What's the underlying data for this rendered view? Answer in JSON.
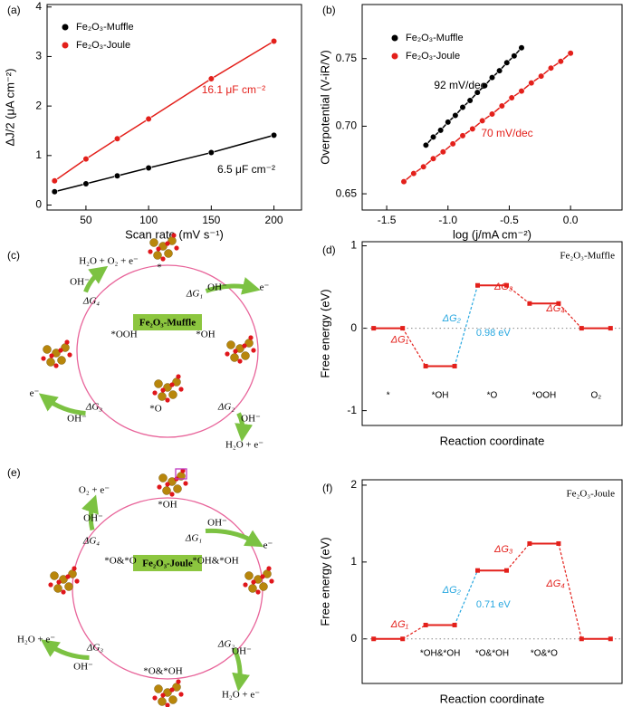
{
  "chart_data": [
    {
      "type": "line",
      "panel": "(a)",
      "xlabel": "Scan rate (mV s⁻¹)",
      "ylabel": "ΔJ/2 (μA cm⁻²)",
      "x": [
        25,
        50,
        75,
        100,
        150,
        200
      ],
      "xlim": [
        19,
        222
      ],
      "xticks": [
        50,
        100,
        150,
        200
      ],
      "ylim": [
        -0.1,
        4.05
      ],
      "yticks": [
        0,
        1,
        2,
        3,
        4
      ],
      "legend": "upper left",
      "series": [
        {
          "name": "Fe₂O₃-Muffle",
          "color": "#000000",
          "values": [
            0.27,
            0.43,
            0.59,
            0.75,
            1.06,
            1.41
          ],
          "annotation": "6.5 μF cm⁻²"
        },
        {
          "name": "Fe₂O₃-Joule",
          "color": "#e3201b",
          "values": [
            0.49,
            0.93,
            1.34,
            1.74,
            2.55,
            3.31
          ],
          "annotation": "16.1 μF cm⁻²"
        }
      ]
    },
    {
      "type": "line",
      "panel": "(b)",
      "xlabel": "log (j/mA cm⁻²)",
      "ylabel": "Overpotential (V-iR/V)",
      "xlim": [
        -1.7,
        0.42
      ],
      "xticks": [
        -1.5,
        {
          "value": -1,
          "label": "-1.0"
        },
        -0.5,
        {
          "value": 0,
          "label": "0.0"
        }
      ],
      "ylim": [
        0.638,
        0.79
      ],
      "yticks": [
        0.65,
        {
          "value": 0.7,
          "label": "0.70"
        },
        0.75
      ],
      "legend": "upper left",
      "series": [
        {
          "name": "Fe₂O₃-Muffle",
          "color": "#000000",
          "x": [
            -1.18,
            -1.12,
            -1.06,
            -1.0,
            -0.94,
            -0.88,
            -0.82,
            -0.76,
            -0.7,
            -0.64,
            -0.58,
            -0.52,
            -0.46,
            -0.4
          ],
          "values": [
            0.686,
            0.692,
            0.697,
            0.703,
            0.708,
            0.714,
            0.719,
            0.725,
            0.73,
            0.736,
            0.741,
            0.747,
            0.752,
            0.758
          ],
          "annotation": "92 mV/dec"
        },
        {
          "name": "Fe₂O₃-Joule",
          "color": "#e3201b",
          "x": [
            -1.36,
            -1.28,
            -1.2,
            -1.12,
            -1.04,
            -0.96,
            -0.88,
            -0.8,
            -0.72,
            -0.64,
            -0.56,
            -0.48,
            -0.4,
            -0.32,
            -0.24,
            -0.16,
            -0.08,
            0.0
          ],
          "values": [
            0.659,
            0.665,
            0.67,
            0.676,
            0.681,
            0.687,
            0.693,
            0.698,
            0.704,
            0.709,
            0.715,
            0.721,
            0.726,
            0.732,
            0.737,
            0.743,
            0.748,
            0.754
          ],
          "annotation": "70 mV/dec"
        }
      ]
    },
    {
      "type": "energy",
      "panel": "(d)",
      "xlabel": "Reaction coordinate",
      "ylabel": "Free energy (eV)",
      "categories": [
        "*",
        "*OH",
        "*O",
        "*OOH",
        "O₂"
      ],
      "values": [
        0,
        -0.46,
        0.52,
        0.3,
        0
      ],
      "ylim": [
        -1.18,
        1.05
      ],
      "yticks": [
        -1,
        0,
        1
      ],
      "color": "#e3201b",
      "highlight_color": "#29a8e0",
      "highlight_step": 1,
      "step_labels": [
        "ΔG₁",
        "ΔG₂",
        "ΔG₃",
        "ΔG₄"
      ],
      "highlight_label": "0.98 eV",
      "inset": "Fe₂O₃-Muffle"
    },
    {
      "type": "energy",
      "panel": "(f)",
      "xlabel": "Reaction coordinate",
      "ylabel": "Free energy (eV)",
      "categories": [
        null,
        "*OH&*OH",
        "*O&*OH",
        "*O&*O",
        null
      ],
      "values": [
        0,
        0.18,
        0.89,
        1.24,
        0
      ],
      "ylim": [
        -0.58,
        2.07
      ],
      "yticks": [
        0,
        1,
        2
      ],
      "color": "#e3201b",
      "highlight_color": "#29a8e0",
      "highlight_step": 1,
      "step_labels": [
        "ΔG₁",
        "ΔG₂",
        "ΔG₃",
        "ΔG₄"
      ],
      "highlight_label": "0.71 eV",
      "inset": "Fe₂O₃-Joule"
    }
  ],
  "diagrams": [
    {
      "panel": "(c)",
      "center_label": "Fe₂O₃-Muffle",
      "states": [
        "*",
        "*OH",
        "*O",
        "*OOH"
      ],
      "steps": [
        "ΔG₁",
        "ΔG₂",
        "ΔG₃",
        "ΔG₄"
      ],
      "reagents": [
        "OH⁻",
        "OH⁻",
        "OH⁻",
        "OH⁻"
      ],
      "products": [
        "e⁻",
        "H₂O + e⁻",
        "e⁻",
        "H₂O + O₂ + e⁻"
      ]
    },
    {
      "panel": "(e)",
      "center_label": "Fe₂O₃-Joule",
      "states": [
        "*OH",
        "*OH&*OH",
        "*O&*OH",
        "*O&*O"
      ],
      "steps": [
        "ΔG₁",
        "ΔG₂",
        "ΔG₃",
        "ΔG₄"
      ],
      "reagents": [
        "OH⁻",
        "OH⁻",
        "OH⁻",
        "OH⁻"
      ],
      "products": [
        "e⁻",
        "H₂O + e⁻",
        "H₂O + e⁻",
        "O₂ + e⁻"
      ]
    }
  ]
}
